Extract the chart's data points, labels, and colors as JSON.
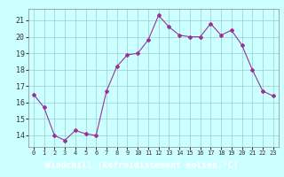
{
  "x": [
    0,
    1,
    2,
    3,
    4,
    5,
    6,
    7,
    8,
    9,
    10,
    11,
    12,
    13,
    14,
    15,
    16,
    17,
    18,
    19,
    20,
    21,
    22,
    23
  ],
  "y": [
    16.5,
    15.7,
    14.0,
    13.7,
    14.3,
    14.1,
    14.0,
    16.7,
    18.2,
    18.9,
    19.0,
    19.8,
    21.3,
    20.6,
    20.1,
    20.0,
    20.0,
    20.8,
    20.1,
    20.4,
    19.5,
    18.0,
    16.7,
    16.4
  ],
  "line_color": "#993399",
  "marker": "D",
  "marker_size": 2,
  "bg_color": "#ccffff",
  "grid_color": "#99cccc",
  "xlabel": "Windchill (Refroidissement éolien,°C)",
  "xlabel_bg": "#9933aa",
  "xlabel_fontsize": 7,
  "ytick_fontsize": 6,
  "xtick_fontsize": 5,
  "yticks": [
    14,
    15,
    16,
    17,
    18,
    19,
    20,
    21
  ],
  "xticks": [
    0,
    1,
    2,
    3,
    4,
    5,
    6,
    7,
    8,
    9,
    10,
    11,
    12,
    13,
    14,
    15,
    16,
    17,
    18,
    19,
    20,
    21,
    22,
    23
  ],
  "ylim": [
    13.3,
    21.7
  ],
  "xlim": [
    -0.5,
    23.5
  ]
}
